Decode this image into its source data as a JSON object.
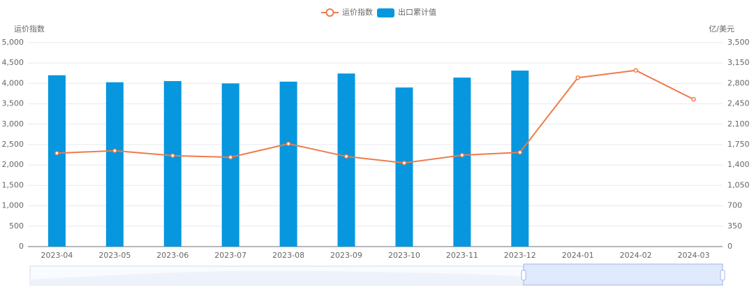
{
  "chart_data": {
    "type": "bar",
    "y_label": "运价指数",
    "y2_label": "亿/美元",
    "categories": [
      "2023-04",
      "2023-05",
      "2023-06",
      "2023-07",
      "2023-08",
      "2023-09",
      "2023-10",
      "2023-11",
      "2023-12",
      "2024-01",
      "2024-02",
      "2024-03"
    ],
    "series": [
      {
        "name": "运价指数",
        "type": "line",
        "color": "#ee7b4c",
        "values": [
          2290,
          2350,
          2230,
          2190,
          2520,
          2210,
          2050,
          2240,
          2310,
          4140,
          4320,
          3610
        ]
      },
      {
        "name": "出口累计值",
        "type": "bar",
        "axis": "y2",
        "color": "#0797de",
        "values": [
          2940,
          2820,
          2840,
          2800,
          2830,
          2970,
          2730,
          2900,
          3020,
          null,
          null,
          null
        ]
      }
    ],
    "ylim": [
      0,
      5000
    ],
    "yticks": [
      0,
      500,
      {
        "value": 1000,
        "label": "1,000"
      },
      {
        "value": 1500,
        "label": "1,500"
      },
      {
        "value": 2000,
        "label": "2,000"
      },
      {
        "value": 2500,
        "label": "2,500"
      },
      {
        "value": 3000,
        "label": "3,000"
      },
      {
        "value": 3500,
        "label": "3,500"
      },
      {
        "value": 4000,
        "label": "4,000"
      },
      {
        "value": 4500,
        "label": "4,500"
      },
      {
        "value": 5000,
        "label": "5,000"
      }
    ],
    "y2lim": [
      0,
      3500
    ],
    "y2ticks": [
      0,
      350,
      700,
      {
        "value": 1050,
        "label": "1,050"
      },
      {
        "value": 1400,
        "label": "1,400"
      },
      {
        "value": 1750,
        "label": "1,750"
      },
      {
        "value": 2100,
        "label": "2,100"
      },
      {
        "value": 2450,
        "label": "2,450"
      },
      {
        "value": 2800,
        "label": "2,800"
      },
      {
        "value": 3150,
        "label": "3,150"
      },
      {
        "value": 3500,
        "label": "3,500"
      }
    ],
    "grid": true
  }
}
